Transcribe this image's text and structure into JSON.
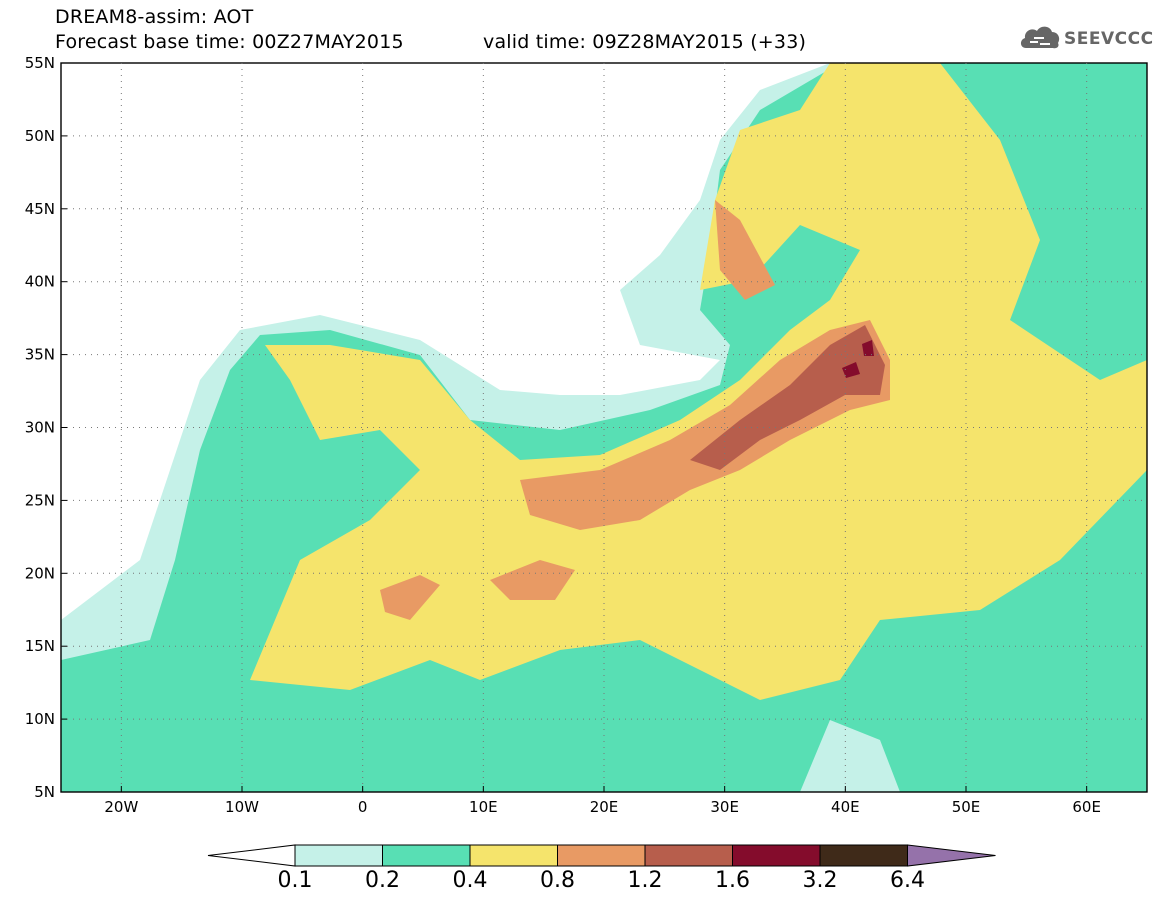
{
  "header": {
    "line1": "DREAM8-assim: AOT",
    "line2": "Forecast base time: 00Z27MAY2015",
    "valid": "valid time: 09Z28MAY2015 (+33)"
  },
  "logo": {
    "text": "SEEVCCC",
    "icon": "cloud-logo-icon"
  },
  "map": {
    "lat_labels": [
      "55N",
      "50N",
      "45N",
      "40N",
      "35N",
      "30N",
      "25N",
      "20N",
      "15N",
      "10N",
      "5N"
    ],
    "lon_labels": [
      "20W",
      "10W",
      "0",
      "10E",
      "20E",
      "30E",
      "40E",
      "50E",
      "60E"
    ],
    "lon_range": [
      -25,
      65
    ],
    "lat_range": [
      5,
      55
    ],
    "grid": "dotted"
  },
  "colorbar": {
    "labels": [
      "0.1",
      "0.2",
      "0.4",
      "0.8",
      "1.2",
      "1.6",
      "3.2",
      "6.4"
    ],
    "colors": [
      "#ffffff",
      "#c5f1e8",
      "#58dfb4",
      "#f5e46c",
      "#e89a64",
      "#b75e4c",
      "#840c2c",
      "#3f2a19",
      "#9572aa"
    ]
  }
}
